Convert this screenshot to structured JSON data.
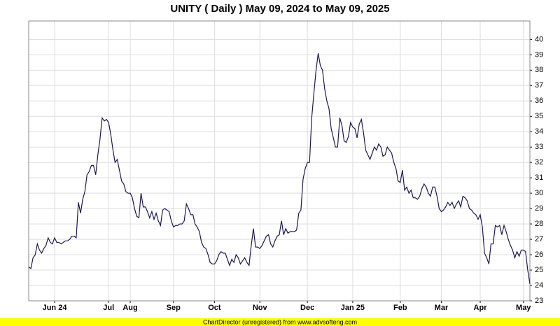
{
  "chart_data": {
    "type": "line",
    "title": "UNITY ( Daily ) May 09, 2024 to May 09, 2025",
    "footer": "ChartDirector (unregistered) from www.advsofteng.com",
    "color": "#1a1a4e",
    "values": [
      25.2,
      25.1,
      25.8,
      26.0,
      26.7,
      26.3,
      26.1,
      26.4,
      26.6,
      27.1,
      26.8,
      26.7,
      27.1,
      26.8,
      26.8,
      26.7,
      26.8,
      26.9,
      26.9,
      27.0,
      27.2,
      27.2,
      27.1,
      29.4,
      28.7,
      29.6,
      30.1,
      31.2,
      31.4,
      31.8,
      31.8,
      31.2,
      32.5,
      33.5,
      34.9,
      34.7,
      34.8,
      34.6,
      33.8,
      32.8,
      32.0,
      32.2,
      31.5,
      30.8,
      30.6,
      30.1,
      30.0,
      30.0,
      29.7,
      29.0,
      28.5,
      28.4,
      30.0,
      29.1,
      29.1,
      28.8,
      28.4,
      28.8,
      28.3,
      28.7,
      28.2,
      27.9,
      28.9,
      29.0,
      28.9,
      28.8,
      28.2,
      27.8,
      27.9,
      27.9,
      28.0,
      28.0,
      28.2,
      29.3,
      29.0,
      28.6,
      28.6,
      28.0,
      27.8,
      27.5,
      26.8,
      26.5,
      26.4,
      26.0,
      25.5,
      25.4,
      25.4,
      25.6,
      26.0,
      26.2,
      26.1,
      26.1,
      25.7,
      25.3,
      25.7,
      25.5,
      26.0,
      25.8,
      25.4,
      25.6,
      25.8,
      25.5,
      25.3,
      26.6,
      27.7,
      26.5,
      26.5,
      26.4,
      26.6,
      26.9,
      27.2,
      27.3,
      26.7,
      26.5,
      26.9,
      27.2,
      27.3,
      28.2,
      27.3,
      27.7,
      27.4,
      27.5,
      27.5,
      27.5,
      27.6,
      28.7,
      28.9,
      30.9,
      31.6,
      32.0,
      32.0,
      34.9,
      36.5,
      38.0,
      39.1,
      38.3,
      38.0,
      36.8,
      36.0,
      35.5,
      34.2,
      33.6,
      33.0,
      33.0,
      34.9,
      34.4,
      33.4,
      33.3,
      33.7,
      34.6,
      34.3,
      34.2,
      33.6,
      34.5,
      34.8,
      33.9,
      32.8,
      32.5,
      32.2,
      32.6,
      33.0,
      32.8,
      33.2,
      33.0,
      32.4,
      32.5,
      33.0,
      32.8,
      32.6,
      32.0,
      31.6,
      30.8,
      30.7,
      31.5,
      30.2,
      30.4,
      30.0,
      30.2,
      29.7,
      29.7,
      29.6,
      29.8,
      30.3,
      30.6,
      30.4,
      30.0,
      29.8,
      30.4,
      30.4,
      29.8,
      29.0,
      28.8,
      28.9,
      29.1,
      29.4,
      29.2,
      29.4,
      29.0,
      29.3,
      29.5,
      29.1,
      29.8,
      29.7,
      29.5,
      29.0,
      28.9,
      28.7,
      28.6,
      28.3,
      28.6,
      27.8,
      26.1,
      25.8,
      25.4,
      26.7,
      26.7,
      27.9,
      27.8,
      27.9,
      27.3,
      27.9,
      27.5,
      27.0,
      26.6,
      26.3,
      25.8,
      26.2,
      25.9,
      26.3,
      26.3,
      26.2,
      25.0,
      24.1
    ],
    "xlim": [
      0,
      232
    ],
    "xticks": [
      {
        "value": 12,
        "label": "Jun 24"
      },
      {
        "value": 37,
        "label": "Jul"
      },
      {
        "value": 47,
        "label": "Aug"
      },
      {
        "value": 67,
        "label": "Sep"
      },
      {
        "value": 86,
        "label": "Oct"
      },
      {
        "value": 107,
        "label": "Nov"
      },
      {
        "value": 129,
        "label": "Dec"
      },
      {
        "value": 150,
        "label": "Jan 25"
      },
      {
        "value": 172,
        "label": "Feb"
      },
      {
        "value": 191,
        "label": "Mar"
      },
      {
        "value": 209,
        "label": "Apr"
      },
      {
        "value": 229,
        "label": "May"
      }
    ],
    "ylim": [
      23,
      41.2
    ],
    "yticks": [
      23,
      24,
      25,
      26,
      27,
      28,
      29,
      30,
      31,
      32,
      33,
      34,
      35,
      36,
      37,
      38,
      39,
      40
    ],
    "grid": true
  }
}
